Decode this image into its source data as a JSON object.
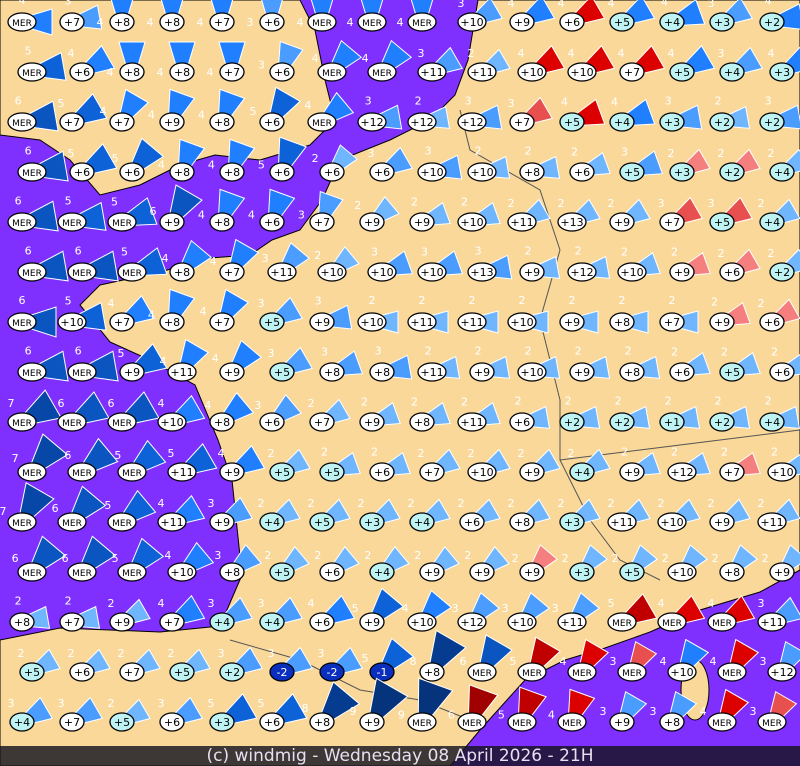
{
  "caption": "(c) windmig - Wednesday 08 April 2026 - 21H",
  "colors": {
    "sea": "#7f30ff",
    "land": "#f9d89a",
    "border": "#555555",
    "temp_bubble": "#ffffff",
    "cold_bubble": "#bff3f3",
    "negative_bubble": "#0a2fbf"
  },
  "wind_colors": {
    "1": "#8cc8ff",
    "2": "#6fb6ff",
    "3": "#4a9cff",
    "4": "#1f7fff",
    "5": "#0d62d8",
    "6": "#0a55c0",
    "7": "#0747a8",
    "8": "#063c90",
    "9": "#05337c"
  },
  "warm_wind_colors": {
    "2": "#f57f7f",
    "3": "#e85050",
    "4": "#dd0000",
    "5": "#c00000",
    "6": "#a00000"
  },
  "stations_legend": "Each entry: temperature | wind force | direction (deg) | w = warm-coloured arrow",
  "stations": [
    [
      "MER|4|90",
      "+7|3|80",
      "+8|4|0",
      "+8|4|0",
      "+7|4|0",
      "+6|3|0",
      "MER|4|0",
      "MER|4|0",
      "MER|4|0",
      "+10|3|60",
      "+9|4|60",
      "+6|4|60|w",
      "+5|4|60",
      "+4|4|70",
      "+3|3|60",
      "+2|4|80"
    ],
    [
      "MER|5|80",
      "+6|4|60",
      "+8|4|0",
      "+8|4|0",
      "+7|4|0",
      "+6|3|20",
      "MER|4|40",
      "MER|4|40",
      "+11|3|60",
      "+11|2|60",
      "+10|4|60|w",
      "+10|4|60|w",
      "+7|4|60|w",
      "+5|4|60",
      "+4|3|60",
      "+3|4|60"
    ],
    [
      "MER|6|80",
      "+7|5|60",
      "+7|4|30",
      "+9|4|20",
      "+8|4|20",
      "+6|5|30",
      "MER|4|50",
      "+12|3|80",
      "+12|2|80",
      "+12|3|80",
      "+7|3|60|w",
      "+5|4|70|w",
      "+4|4|70",
      "+3|3|80",
      "+2|2|80",
      "+2|3|80"
    ],
    [
      "MER|6|80",
      "+6|5|60",
      "+6|5|40",
      "+8|4|20",
      "+8|4|20",
      "+6|5|20",
      "+6|2|40",
      "+6|3|60",
      "+10|3|80",
      "+10|2|80",
      "+8|2|80",
      "+6|2|70",
      "+5|3|70",
      "+3|2|60|w",
      "+2|2|60|w",
      "+4|2|60"
    ],
    [
      "MER|6|80",
      "MER|5|80",
      "MER|5|70",
      "+9|6|30",
      "+8|4|20",
      "+6|4|20",
      "+7|3|20",
      "+9|2|50",
      "+9|2|70",
      "+10|2|70",
      "+11|2|60",
      "+13|2|60",
      "+9|2|60",
      "+7|3|60|w",
      "+5|3|60|w",
      "+4|2|60"
    ],
    [
      "MER|6|80",
      "MER|6|80",
      "MER|5|70",
      "+8|4|40",
      "+7|4|30",
      "+11|3|40",
      "+10|2|50",
      "+10|3|70",
      "+10|3|70",
      "+13|3|80",
      "+9|2|80",
      "+12|2|80",
      "+10|2|70",
      "+9|2|70|w",
      "+6|2|60|w",
      "+2|2|60"
    ],
    [
      "MER|6|90",
      "+10|5|80",
      "+7|4|60",
      "+8|4|20",
      "+7|4|30",
      "+5|3|60",
      "+9|3|80",
      "+10|2|90",
      "+11|2|90",
      "+11|2|90",
      "+10|2|90",
      "+9|2|90",
      "+8|2|90",
      "+7|2|90",
      "+9|2|70|w",
      "+6|2|60|w"
    ],
    [
      "MER|6|80",
      "MER|6|80",
      "+9|5|60",
      "+11|4|30",
      "+9|4|40",
      "+5|3|60",
      "+8|3|70",
      "+8|3|80",
      "+11|2|80",
      "+9|2|80",
      "+10|2|80",
      "+9|2|80",
      "+8|2|80",
      "+6|2|70",
      "+5|2|70",
      "+6|2|70"
    ],
    [
      "MER|7|60",
      "MER|6|60",
      "MER|6|60",
      "+10|4|60",
      "+8|4|50",
      "+6|3|50",
      "+7|2|60",
      "+9|2|70",
      "+8|2|70",
      "+11|2|70",
      "+6|2|80",
      "+2|2|80",
      "+2|2|80",
      "+1|2|80",
      "+2|2|80",
      "+4|2|80"
    ],
    [
      "MER|7|40",
      "MER|6|50",
      "MER|5|50",
      "+11|5|60",
      "+9|4|60",
      "+5|2|60",
      "+5|2|70",
      "+6|2|70",
      "+7|2|60",
      "+10|2|60",
      "+9|2|60",
      "+4|2|60",
      "+9|2|70",
      "+12|2|70",
      "+7|2|70|w",
      "+10|2|70"
    ],
    [
      "MER|7|30",
      "MER|6|40",
      "MER|5|50",
      "+11|4|60",
      "+9|3|60",
      "+4|2|60",
      "+5|2|60",
      "+3|2|60",
      "+4|2|60",
      "+6|2|60",
      "+8|2|60",
      "+3|2|60",
      "+11|2|60",
      "+10|2|60",
      "+9|2|60",
      "+11|2|60"
    ],
    [
      "MER|6|40",
      "MER|6|40",
      "MER|5|40",
      "+10|4|50",
      "+8|3|50",
      "+5|2|50",
      "+6|2|50",
      "+4|2|50",
      "+9|2|50",
      "+9|2|50",
      "+9|2|40|w",
      "+3|2|40",
      "+5|2|40",
      "+10|2|40",
      "+8|2|40",
      "+9|2|40"
    ],
    [
      "+8|2|80",
      "+7|2|80",
      "+9|2|60",
      "+7|4|60",
      "+4|3|60",
      "+4|3|60",
      "+6|4|60",
      "+9|5|40",
      "+10|4|40",
      "+12|3|40",
      "+10|3|40",
      "+11|3|40",
      "MER|5|60|w",
      "MER|4|60|w",
      "MER|4|60|w",
      "+11|3|60"
    ],
    [
      "+5|2|60",
      "+6|2|60",
      "+7|2|60",
      "+5|2|60",
      "+2|3|60",
      "-2|3|60",
      "-2|3|60",
      "-1|5|40",
      "+8|8|30",
      "MER|6|30",
      "MER|5|30|w",
      "MER|4|30|w",
      "MER|3|30|w",
      "+10|4|30",
      "MER|4|30|w",
      "+12|3|30"
    ],
    [
      "+4|3|60",
      "+7|3|60",
      "+5|2|60",
      "+6|3|60",
      "+3|5|60",
      "+6|5|60",
      "+8|8|40",
      "+9|9|30",
      "MER|9|20",
      "MER|6|20|w",
      "MER|5|20|w",
      "MER|4|20|w",
      "+9|3|30",
      "+8|3|30",
      "MER|4|30|w",
      "MER|3|30|w"
    ]
  ]
}
